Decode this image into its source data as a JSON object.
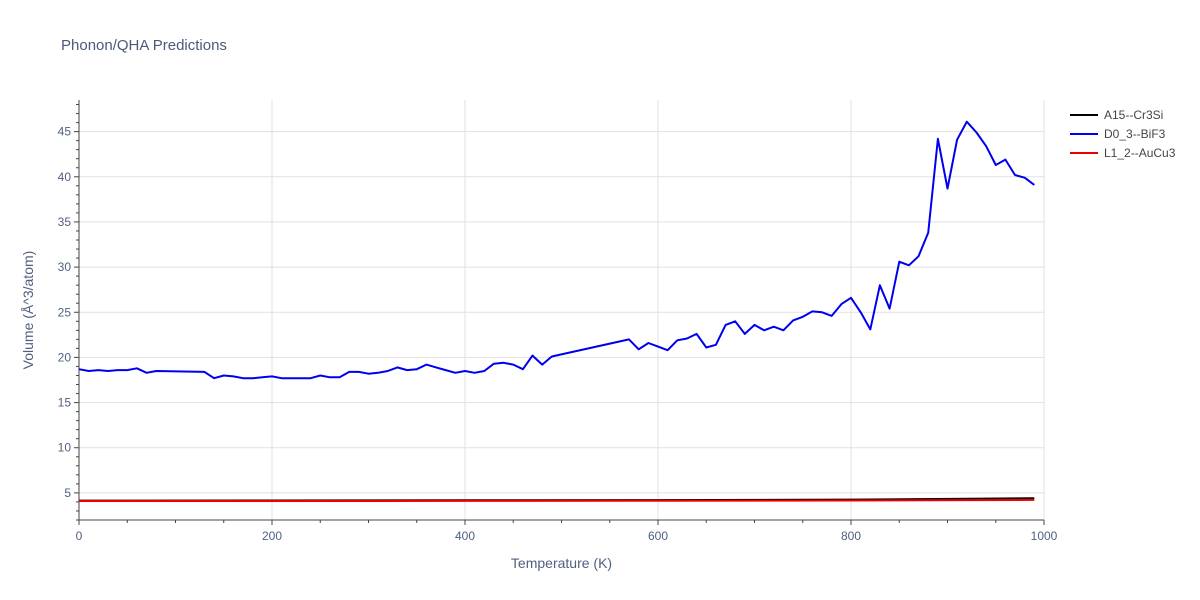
{
  "chart_data": {
    "type": "line",
    "title": "Phonon/QHA Predictions",
    "xlabel": "Temperature (K)",
    "ylabel": "Volume (Å^3/atom)",
    "xlim": [
      0,
      1000
    ],
    "ylim": [
      2,
      48.5
    ],
    "xticks": [
      0,
      200,
      400,
      600,
      800,
      1000
    ],
    "yticks": [
      5,
      10,
      15,
      20,
      25,
      30,
      35,
      40,
      45
    ],
    "grid": true,
    "legend_position": "top-right",
    "series": [
      {
        "name": "A15--Cr3Si",
        "color": "#000000",
        "x": [
          0,
          200,
          400,
          600,
          800,
          990
        ],
        "y": [
          4.15,
          4.16,
          4.18,
          4.2,
          4.26,
          4.4
        ]
      },
      {
        "name": "D0_3--BiF3",
        "color": "#0000ee",
        "x": [
          0,
          10,
          20,
          30,
          40,
          50,
          60,
          70,
          80,
          130,
          140,
          150,
          160,
          170,
          180,
          190,
          200,
          210,
          220,
          230,
          240,
          250,
          260,
          270,
          280,
          290,
          300,
          310,
          320,
          330,
          340,
          350,
          360,
          370,
          380,
          390,
          400,
          410,
          420,
          430,
          440,
          450,
          460,
          470,
          480,
          490,
          570,
          580,
          590,
          600,
          610,
          620,
          630,
          640,
          650,
          660,
          670,
          680,
          690,
          700,
          710,
          720,
          730,
          740,
          750,
          760,
          770,
          780,
          790,
          800,
          810,
          820,
          830,
          840,
          850,
          860,
          870,
          880,
          890,
          900,
          910,
          920,
          930,
          940,
          950,
          960,
          970,
          980,
          990
        ],
        "y": [
          18.7,
          18.5,
          18.6,
          18.5,
          18.6,
          18.6,
          18.8,
          18.3,
          18.5,
          18.4,
          17.7,
          18.0,
          17.9,
          17.7,
          17.7,
          17.8,
          17.9,
          17.7,
          17.7,
          17.7,
          17.7,
          18.0,
          17.8,
          17.8,
          18.4,
          18.4,
          18.2,
          18.3,
          18.5,
          18.9,
          18.6,
          18.7,
          19.2,
          18.9,
          18.6,
          18.3,
          18.5,
          18.3,
          18.5,
          19.3,
          19.4,
          19.2,
          18.7,
          20.2,
          19.2,
          20.1,
          22.0,
          20.9,
          21.6,
          21.2,
          20.8,
          21.9,
          22.1,
          22.6,
          21.1,
          21.4,
          23.6,
          24.0,
          22.6,
          23.6,
          23.0,
          23.4,
          23.0,
          24.1,
          24.5,
          25.1,
          25.0,
          24.6,
          25.9,
          26.6,
          25.0,
          23.1,
          28.0,
          25.4,
          30.6,
          30.2,
          31.2,
          33.8,
          44.2,
          38.7,
          44.1,
          46.1,
          44.9,
          43.4,
          41.3,
          41.9,
          40.2,
          39.9,
          39.1
        ]
      },
      {
        "name": "L1_2--AuCu3",
        "color": "#ee0000",
        "x": [
          0,
          200,
          400,
          600,
          800,
          990
        ],
        "y": [
          4.1,
          4.1,
          4.12,
          4.13,
          4.16,
          4.22
        ]
      }
    ]
  }
}
